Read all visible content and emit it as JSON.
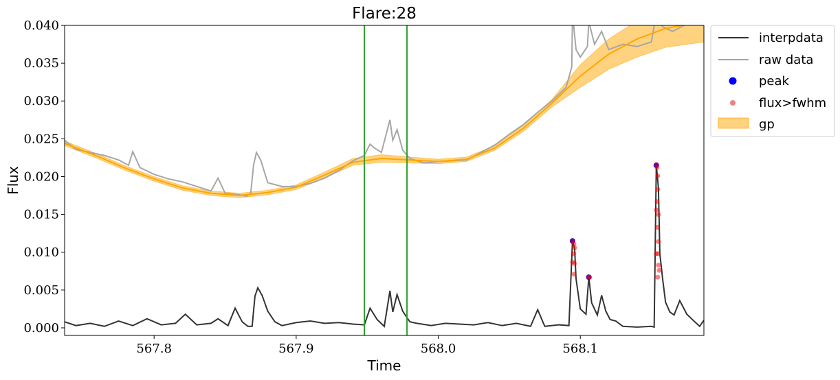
{
  "chart_data": {
    "type": "line",
    "title": "Flare:28",
    "xlabel": "Time",
    "ylabel": "Flux",
    "xlim": [
      567.737,
      568.187
    ],
    "ylim": [
      -0.001,
      0.04
    ],
    "xticks": [
      567.8,
      567.9,
      568.0,
      568.1
    ],
    "xtick_labels": [
      "567.8",
      "567.9",
      "568.0",
      "568.1"
    ],
    "yticks": [
      0.0,
      0.005,
      0.01,
      0.015,
      0.02,
      0.025,
      0.03,
      0.035,
      0.04
    ],
    "ytick_labels": [
      "0.000",
      "0.005",
      "0.010",
      "0.015",
      "0.020",
      "0.025",
      "0.030",
      "0.035",
      "0.040"
    ],
    "grid": false,
    "legend_position": "outside-top-right",
    "vlines": [
      567.948,
      567.978
    ],
    "series": [
      {
        "name": "interpdata",
        "kind": "line",
        "color": "#333333",
        "points": [
          [
            567.737,
            0.0008
          ],
          [
            567.745,
            0.0003
          ],
          [
            567.755,
            0.0006
          ],
          [
            567.765,
            0.0002
          ],
          [
            567.775,
            0.0009
          ],
          [
            567.785,
            0.0003
          ],
          [
            567.795,
            0.0012
          ],
          [
            567.805,
            0.0004
          ],
          [
            567.815,
            0.0006
          ],
          [
            567.822,
            0.0018
          ],
          [
            567.83,
            0.0004
          ],
          [
            567.84,
            0.0006
          ],
          [
            567.845,
            0.0012
          ],
          [
            567.852,
            0.0003
          ],
          [
            567.857,
            0.0026
          ],
          [
            567.862,
            0.0008
          ],
          [
            567.866,
            0.0002
          ],
          [
            567.869,
            0.0002
          ],
          [
            567.871,
            0.0042
          ],
          [
            567.873,
            0.0053
          ],
          [
            567.876,
            0.0043
          ],
          [
            567.88,
            0.0022
          ],
          [
            567.885,
            0.0008
          ],
          [
            567.89,
            0.0003
          ],
          [
            567.9,
            0.0007
          ],
          [
            567.91,
            0.0009
          ],
          [
            567.92,
            0.0006
          ],
          [
            567.93,
            0.0007
          ],
          [
            567.94,
            0.0005
          ],
          [
            567.948,
            0.0004
          ],
          [
            567.952,
            0.0026
          ],
          [
            567.957,
            0.0011
          ],
          [
            567.962,
            0.0002
          ],
          [
            567.966,
            0.0049
          ],
          [
            567.968,
            0.0021
          ],
          [
            567.971,
            0.0044
          ],
          [
            567.975,
            0.0022
          ],
          [
            567.98,
            0.0008
          ],
          [
            567.985,
            0.0006
          ],
          [
            567.995,
            0.0003
          ],
          [
            568.005,
            0.0006
          ],
          [
            568.015,
            0.0005
          ],
          [
            568.025,
            0.0004
          ],
          [
            568.035,
            0.0007
          ],
          [
            568.045,
            0.0003
          ],
          [
            568.055,
            0.0006
          ],
          [
            568.065,
            0.0002
          ],
          [
            568.07,
            0.0024
          ],
          [
            568.075,
            0.0002
          ],
          [
            568.085,
            0.0004
          ],
          [
            568.092,
            0.0003
          ],
          [
            568.0945,
            0.0115
          ],
          [
            568.096,
            0.0105
          ],
          [
            568.097,
            0.0065
          ],
          [
            568.1,
            0.0025
          ],
          [
            568.104,
            0.0018
          ],
          [
            568.106,
            0.0067
          ],
          [
            568.108,
            0.0033
          ],
          [
            568.112,
            0.0017
          ],
          [
            568.115,
            0.0043
          ],
          [
            568.118,
            0.0022
          ],
          [
            568.121,
            0.0011
          ],
          [
            568.125,
            0.0009
          ],
          [
            568.13,
            0.0002
          ],
          [
            568.14,
            0.0001
          ],
          [
            568.15,
            0.0002
          ],
          [
            568.152,
            0.0001
          ],
          [
            568.1535,
            0.0215
          ],
          [
            568.155,
            0.0185
          ],
          [
            568.156,
            0.0098
          ],
          [
            568.158,
            0.0064
          ],
          [
            568.16,
            0.0034
          ],
          [
            568.163,
            0.0021
          ],
          [
            568.166,
            0.0017
          ],
          [
            568.17,
            0.0036
          ],
          [
            568.175,
            0.0018
          ],
          [
            568.18,
            0.0009
          ],
          [
            568.184,
            0.0002
          ],
          [
            568.187,
            0.001
          ]
        ]
      },
      {
        "name": "raw data",
        "kind": "line",
        "color": "#a6a6a6",
        "points": [
          [
            567.737,
            0.0248
          ],
          [
            567.745,
            0.0236
          ],
          [
            567.755,
            0.0232
          ],
          [
            567.765,
            0.0228
          ],
          [
            567.775,
            0.0222
          ],
          [
            567.782,
            0.0215
          ],
          [
            567.785,
            0.0233
          ],
          [
            567.79,
            0.0212
          ],
          [
            567.8,
            0.0203
          ],
          [
            567.81,
            0.0197
          ],
          [
            567.82,
            0.0193
          ],
          [
            567.83,
            0.0187
          ],
          [
            567.84,
            0.0181
          ],
          [
            567.845,
            0.0198
          ],
          [
            567.85,
            0.0178
          ],
          [
            567.86,
            0.0176
          ],
          [
            567.865,
            0.0174
          ],
          [
            567.868,
            0.0178
          ],
          [
            567.87,
            0.0215
          ],
          [
            567.872,
            0.0232
          ],
          [
            567.875,
            0.0222
          ],
          [
            567.88,
            0.0192
          ],
          [
            567.89,
            0.0187
          ],
          [
            567.9,
            0.0187
          ],
          [
            567.91,
            0.0191
          ],
          [
            567.92,
            0.0198
          ],
          [
            567.93,
            0.0208
          ],
          [
            567.94,
            0.0221
          ],
          [
            567.948,
            0.0228
          ],
          [
            567.952,
            0.0243
          ],
          [
            567.955,
            0.0238
          ],
          [
            567.96,
            0.0232
          ],
          [
            567.966,
            0.0275
          ],
          [
            567.968,
            0.0248
          ],
          [
            567.971,
            0.0262
          ],
          [
            567.975,
            0.0235
          ],
          [
            567.98,
            0.0224
          ],
          [
            567.99,
            0.0218
          ],
          [
            568.0,
            0.022
          ],
          [
            568.01,
            0.0221
          ],
          [
            568.02,
            0.0222
          ],
          [
            568.03,
            0.0232
          ],
          [
            568.04,
            0.0242
          ],
          [
            568.05,
            0.0256
          ],
          [
            568.06,
            0.0269
          ],
          [
            568.07,
            0.0285
          ],
          [
            568.08,
            0.03
          ],
          [
            568.09,
            0.0318
          ],
          [
            568.094,
            0.0345
          ],
          [
            568.0945,
            0.0415
          ],
          [
            568.097,
            0.0368
          ],
          [
            568.1,
            0.0358
          ],
          [
            568.105,
            0.0372
          ],
          [
            568.106,
            0.0405
          ],
          [
            568.11,
            0.0375
          ],
          [
            568.115,
            0.0392
          ],
          [
            568.12,
            0.0368
          ],
          [
            568.13,
            0.0375
          ],
          [
            568.14,
            0.0372
          ],
          [
            568.15,
            0.0378
          ],
          [
            568.1535,
            0.0415
          ],
          [
            568.158,
            0.0398
          ],
          [
            568.165,
            0.0392
          ],
          [
            568.175,
            0.0402
          ],
          [
            568.187,
            0.0408
          ]
        ]
      },
      {
        "name": "gp",
        "kind": "band",
        "color": "#ffa500",
        "points": [
          [
            567.737,
            0.0244,
            0.0241,
            0.0247
          ],
          [
            567.76,
            0.0227,
            0.0224,
            0.023
          ],
          [
            567.78,
            0.0211,
            0.0208,
            0.0214
          ],
          [
            567.8,
            0.0197,
            0.0194,
            0.02
          ],
          [
            567.82,
            0.0185,
            0.0182,
            0.0188
          ],
          [
            567.84,
            0.0178,
            0.0175,
            0.0181
          ],
          [
            567.86,
            0.0175,
            0.0172,
            0.0178
          ],
          [
            567.88,
            0.0179,
            0.0176,
            0.0182
          ],
          [
            567.9,
            0.0186,
            0.0183,
            0.0189
          ],
          [
            567.92,
            0.0202,
            0.0198,
            0.0206
          ],
          [
            567.94,
            0.0219,
            0.0215,
            0.0224
          ],
          [
            567.96,
            0.0224,
            0.0219,
            0.0229
          ],
          [
            567.98,
            0.0222,
            0.0218,
            0.0226
          ],
          [
            568.0,
            0.022,
            0.0217,
            0.0223
          ],
          [
            568.02,
            0.0223,
            0.022,
            0.0226
          ],
          [
            568.04,
            0.0238,
            0.0235,
            0.0241
          ],
          [
            568.06,
            0.0264,
            0.026,
            0.0268
          ],
          [
            568.08,
            0.0297,
            0.0292,
            0.0302
          ],
          [
            568.1,
            0.0333,
            0.0318,
            0.0348
          ],
          [
            568.12,
            0.0362,
            0.0342,
            0.0382
          ],
          [
            568.14,
            0.0382,
            0.0358,
            0.0406
          ],
          [
            568.16,
            0.0396,
            0.0371,
            0.0421
          ],
          [
            568.187,
            0.0405,
            0.0378,
            0.0432
          ]
        ]
      },
      {
        "name": "peak",
        "kind": "scatter",
        "color": "#0000ff",
        "points": [
          [
            568.0945,
            0.0115
          ],
          [
            568.106,
            0.0067
          ],
          [
            568.1535,
            0.0215
          ]
        ]
      },
      {
        "name": "flux>fwhm",
        "kind": "scatter",
        "color": "#f08080",
        "points": [
          [
            568.0945,
            0.0115
          ],
          [
            568.0955,
            0.0111
          ],
          [
            568.096,
            0.0106
          ],
          [
            568.0955,
            0.0098
          ],
          [
            568.0945,
            0.0087
          ],
          [
            568.096,
            0.0085
          ],
          [
            568.0955,
            0.0071
          ],
          [
            568.106,
            0.0067
          ],
          [
            568.1065,
            0.0067
          ],
          [
            568.1535,
            0.0216
          ],
          [
            568.154,
            0.0212
          ],
          [
            568.1545,
            0.0201
          ],
          [
            568.1545,
            0.0183
          ],
          [
            568.154,
            0.0167
          ],
          [
            568.1535,
            0.0156
          ],
          [
            568.155,
            0.015
          ],
          [
            568.1545,
            0.0133
          ],
          [
            568.155,
            0.0114
          ],
          [
            568.1535,
            0.0098
          ],
          [
            568.1545,
            0.0098
          ],
          [
            568.155,
            0.0083
          ],
          [
            568.1555,
            0.0076
          ],
          [
            568.1545,
            0.0067
          ]
        ]
      }
    ]
  }
}
